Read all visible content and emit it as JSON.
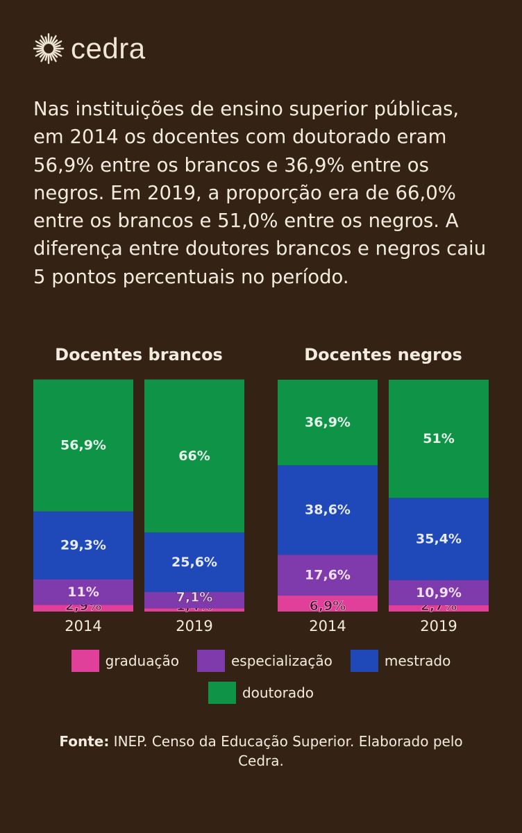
{
  "logo": {
    "text": "cedra",
    "icon": "sun-burst-icon"
  },
  "intro_text": "Nas instituições de ensino superior públicas, em 2014 os docentes com doutorado eram 56,9% entre os brancos e 36,9% entre os negros. Em 2019, a proporção era de 66,0% entre os brancos e 51,0% entre os negros. A diferença entre doutores brancos e negros caiu 5 pontos percentuais no período.",
  "colors": {
    "background": "#342214",
    "graduacao": "#e0409a",
    "especializacao": "#7f3aab",
    "mestrado": "#1f48b8",
    "doutorado": "#0f9447"
  },
  "chart_data": {
    "type": "bar",
    "stacked": true,
    "groups": [
      {
        "title": "Docentes brancos",
        "categories": [
          "2014",
          "2019"
        ],
        "series": [
          {
            "name": "graduação",
            "values": [
              2.9,
              1.4
            ],
            "labels": [
              "2,9%",
              "1,4%"
            ]
          },
          {
            "name": "especialização",
            "values": [
              11,
              7.1
            ],
            "labels": [
              "11%",
              "7,1%"
            ]
          },
          {
            "name": "mestrado",
            "values": [
              29.3,
              25.6
            ],
            "labels": [
              "29,3%",
              "25,6%"
            ]
          },
          {
            "name": "doutorado",
            "values": [
              56.9,
              66
            ],
            "labels": [
              "56,9%",
              "66%"
            ]
          }
        ]
      },
      {
        "title": "Docentes negros",
        "categories": [
          "2014",
          "2019"
        ],
        "series": [
          {
            "name": "graduação",
            "values": [
              6.9,
              2.7
            ],
            "labels": [
              "6,9%",
              "2,7%"
            ]
          },
          {
            "name": "especialização",
            "values": [
              17.6,
              10.9
            ],
            "labels": [
              "17,6%",
              "10,9%"
            ]
          },
          {
            "name": "mestrado",
            "values": [
              38.6,
              35.4
            ],
            "labels": [
              "38,6%",
              "35,4%"
            ]
          },
          {
            "name": "doutorado",
            "values": [
              36.9,
              51
            ],
            "labels": [
              "36,9%",
              "51%"
            ]
          }
        ]
      }
    ],
    "ylim": [
      0,
      100
    ],
    "grid": false,
    "legend_position": "bottom"
  },
  "legend": [
    {
      "label": "graduação",
      "color": "#e0409a"
    },
    {
      "label": "especialização",
      "color": "#7f3aab"
    },
    {
      "label": "mestrado",
      "color": "#1f48b8"
    },
    {
      "label": "doutorado",
      "color": "#0f9447"
    }
  ],
  "source": {
    "label": "Fonte:",
    "text": "INEP. Censo da Educação Superior. Elaborado pelo Cedra."
  }
}
